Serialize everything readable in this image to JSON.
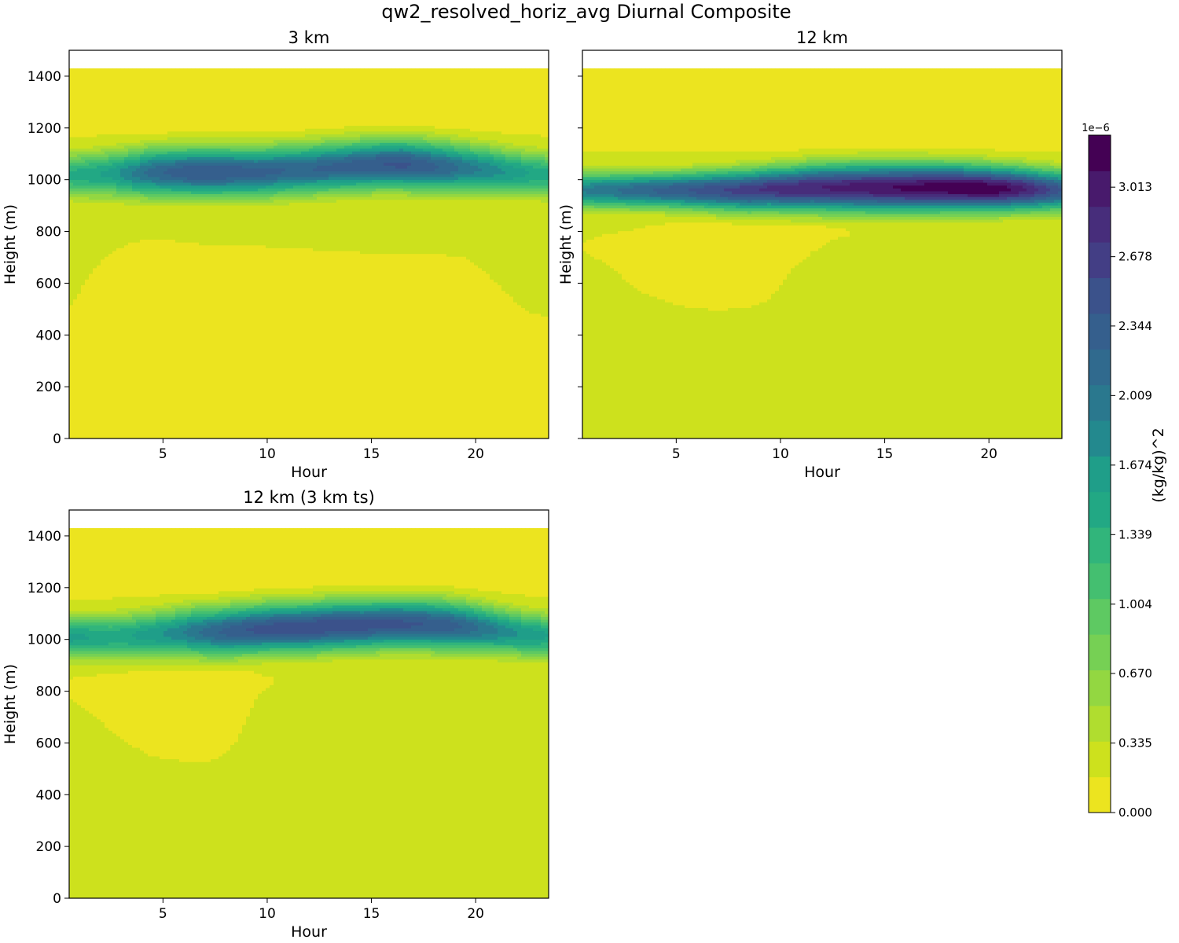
{
  "figure": {
    "title": "qw2_resolved_horiz_avg Diurnal Composite"
  },
  "chart_data": [
    {
      "type": "heatmap",
      "title": "3 km",
      "xlabel": "Hour",
      "ylabel": "Height (m)",
      "xlim": [
        0.5,
        23.5
      ],
      "ylim": [
        0,
        1500
      ],
      "data_top_m": 1430,
      "xticks": [
        5,
        10,
        15,
        20
      ],
      "yticks": [
        0,
        200,
        400,
        600,
        800,
        1000,
        1200,
        1400
      ],
      "show_yticklabels": true,
      "peak_height_m": [
        1020,
        1020,
        1025,
        1025,
        1030,
        1030,
        1030,
        1030,
        1030,
        1030,
        1035,
        1040,
        1045,
        1050,
        1055,
        1060,
        1060,
        1055,
        1050,
        1045,
        1040,
        1030,
        1025,
        1020
      ],
      "peak_value_e6": [
        1.4,
        1.5,
        1.6,
        1.9,
        2.15,
        2.3,
        2.4,
        2.4,
        2.35,
        2.3,
        2.25,
        2.2,
        2.25,
        2.3,
        2.35,
        2.4,
        2.45,
        2.35,
        2.2,
        2.0,
        1.85,
        1.7,
        1.55,
        1.45
      ],
      "layer_thickness_m": [
        85,
        88,
        90,
        92,
        95,
        95,
        95,
        95,
        95,
        95,
        95,
        95,
        95,
        95,
        95,
        95,
        95,
        95,
        95,
        92,
        90,
        88,
        86,
        85
      ],
      "low_region_top_m": [
        500,
        640,
        720,
        760,
        775,
        765,
        755,
        750,
        750,
        745,
        740,
        735,
        730,
        725,
        720,
        715,
        712,
        710,
        710,
        700,
        640,
        560,
        490,
        470
      ],
      "low_region_value_e6": 0.1,
      "background_value_e6": 0.22,
      "upper_value_e6": 0.08
    },
    {
      "type": "heatmap",
      "title": "12 km",
      "xlabel": "Hour",
      "ylabel": "Height (m)",
      "xlim": [
        0.5,
        23.5
      ],
      "ylim": [
        0,
        1500
      ],
      "data_top_m": 1430,
      "xticks": [
        5,
        10,
        15,
        20
      ],
      "yticks": [
        0,
        200,
        400,
        600,
        800,
        1000,
        1200,
        1400
      ],
      "show_yticklabels": false,
      "peak_height_m": [
        960,
        960,
        960,
        960,
        960,
        960,
        960,
        960,
        960,
        965,
        965,
        970,
        970,
        970,
        970,
        970,
        970,
        970,
        970,
        968,
        966,
        965,
        962,
        960
      ],
      "peak_value_e6": [
        1.9,
        2.0,
        2.1,
        2.2,
        2.3,
        2.4,
        2.5,
        2.6,
        2.7,
        2.8,
        2.85,
        2.9,
        2.95,
        3.0,
        3.05,
        3.1,
        3.15,
        3.2,
        3.25,
        3.25,
        3.2,
        3.0,
        2.7,
        2.4
      ],
      "layer_thickness_m": [
        70,
        70,
        70,
        70,
        70,
        72,
        75,
        78,
        80,
        82,
        85,
        88,
        90,
        92,
        92,
        92,
        92,
        90,
        88,
        86,
        84,
        82,
        80,
        78
      ],
      "low_region_top_m": [
        760,
        790,
        800,
        820,
        830,
        840,
        845,
        848,
        850,
        850,
        850,
        850,
        850,
        790,
        null,
        null,
        null,
        null,
        null,
        null,
        null,
        null,
        null,
        null
      ],
      "low_region_bottom_m": [
        730,
        680,
        620,
        560,
        530,
        510,
        500,
        500,
        510,
        540,
        650,
        720,
        770,
        790,
        null,
        null,
        null,
        null,
        null,
        null,
        null,
        null,
        null,
        null
      ],
      "low_region_value_e6": 0.1,
      "background_value_e6": 0.22,
      "upper_value_e6": 0.08
    },
    {
      "type": "heatmap",
      "title": "12 km (3 km ts)",
      "xlabel": "Hour",
      "ylabel": "Height (m)",
      "xlim": [
        0.5,
        23.5
      ],
      "ylim": [
        0,
        1500
      ],
      "data_top_m": 1430,
      "xticks": [
        5,
        10,
        15,
        20
      ],
      "yticks": [
        0,
        200,
        400,
        600,
        800,
        1000,
        1200,
        1400
      ],
      "show_yticklabels": true,
      "peak_height_m": [
        1010,
        1010,
        1010,
        1015,
        1020,
        1025,
        1030,
        1030,
        1035,
        1040,
        1045,
        1045,
        1050,
        1055,
        1055,
        1060,
        1060,
        1060,
        1055,
        1050,
        1040,
        1030,
        1020,
        1015
      ],
      "peak_value_e6": [
        1.6,
        1.55,
        1.5,
        1.55,
        1.65,
        1.8,
        2.0,
        2.2,
        2.35,
        2.45,
        2.5,
        2.55,
        2.55,
        2.55,
        2.5,
        2.45,
        2.45,
        2.4,
        2.35,
        2.2,
        2.0,
        1.8,
        1.65,
        1.55
      ],
      "layer_thickness_m": [
        85,
        85,
        85,
        88,
        90,
        92,
        95,
        95,
        95,
        95,
        95,
        95,
        95,
        95,
        95,
        95,
        95,
        95,
        95,
        93,
        90,
        88,
        86,
        85
      ],
      "low_region_top_m": [
        850,
        860,
        870,
        875,
        880,
        885,
        890,
        890,
        890,
        870,
        850,
        null,
        null,
        null,
        null,
        null,
        null,
        null,
        null,
        null,
        null,
        null,
        null,
        null
      ],
      "low_region_bottom_m": [
        780,
        720,
        650,
        590,
        550,
        535,
        530,
        535,
        600,
        780,
        850,
        null,
        null,
        null,
        null,
        null,
        null,
        null,
        null,
        null,
        null,
        null,
        null,
        null
      ],
      "low_region_value_e6": 0.1,
      "background_value_e6": 0.22,
      "upper_value_e6": 0.08
    }
  ],
  "colorbar": {
    "label": "(kg/kg)^2",
    "exponent_label": "1e−6",
    "vmin": 0.0,
    "vmax": 3.2635,
    "n_levels": 19,
    "ticks": [
      0.0,
      0.335,
      0.67,
      1.004,
      1.339,
      1.674,
      2.009,
      2.344,
      2.678,
      3.013
    ],
    "tick_labels": [
      "0.000",
      "0.335",
      "0.670",
      "1.004",
      "1.339",
      "1.674",
      "2.009",
      "2.344",
      "2.678",
      "3.013"
    ],
    "colors": [
      "#ece41f",
      "#cde11d",
      "#b0dd2f",
      "#93d741",
      "#76d054",
      "#5ec962",
      "#44bf70",
      "#31b57b",
      "#22a884",
      "#1f9e89",
      "#23898e",
      "#2a788e",
      "#306a8e",
      "#355f8d",
      "#3b528b",
      "#433e85",
      "#472d7b",
      "#481a6c",
      "#440154"
    ]
  }
}
